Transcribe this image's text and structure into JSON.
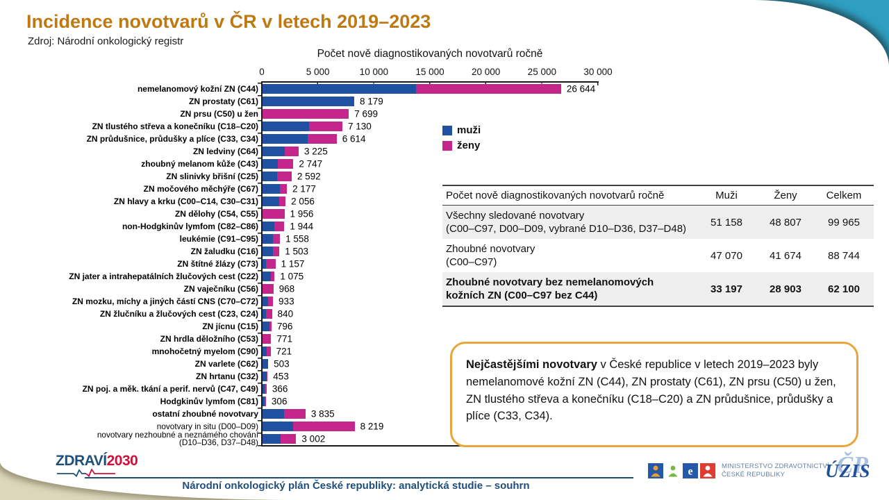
{
  "header": {
    "title": "Incidence novotvarů v ČR v letech 2019–2023",
    "subtitle": "Zdroj: Národní onkologický registr"
  },
  "colors": {
    "muzi_blue": "#2050A0",
    "zeny_pink": "#C4268C",
    "title_orange": "#BF7913",
    "infobox_border": "#E9A43C",
    "footer_blue": "#1F4E79",
    "logo_red": "#D0103A",
    "corner_teal": "#2E9FC1",
    "corner_beige": "#E7E2CC",
    "table_shade": "#EFEFEF"
  },
  "chart_data": {
    "type": "bar",
    "orientation": "horizontal-stacked",
    "title": "Počet nově diagnostikovaných novotvarů ročně",
    "x_axis": {
      "min": 0,
      "max": 30000,
      "tick_step": 5000,
      "tick_labels": [
        "0",
        "5 000",
        "10 000",
        "15 000",
        "20 000",
        "25 000",
        "30 000"
      ]
    },
    "legend": [
      {
        "label": "muži",
        "color": "#2050A0"
      },
      {
        "label": "ženy",
        "color": "#C4268C"
      }
    ],
    "series_names": [
      "muži",
      "ženy"
    ],
    "rows": [
      {
        "label": "nemelanomový kožní ZN (C44)",
        "bold": true,
        "muzi": 13700,
        "zeny": 12944,
        "total": 26644,
        "total_label": "26 644"
      },
      {
        "label": "ZN prostaty (C61)",
        "bold": true,
        "muzi": 8179,
        "zeny": 0,
        "total": 8179,
        "total_label": "8 179"
      },
      {
        "label": "ZN prsu (C50) u žen",
        "bold": true,
        "muzi": 0,
        "zeny": 7699,
        "total": 7699,
        "total_label": "7 699"
      },
      {
        "label": "ZN tlustého střeva a konečníku (C18–C20)",
        "bold": true,
        "muzi": 4150,
        "zeny": 2980,
        "total": 7130,
        "total_label": "7 130"
      },
      {
        "label": "ZN průdušnice, průdušky a plíce (C33, C34)",
        "bold": true,
        "muzi": 4000,
        "zeny": 2614,
        "total": 6614,
        "total_label": "6 614"
      },
      {
        "label": "ZN ledviny (C64)",
        "bold": true,
        "muzi": 2000,
        "zeny": 1225,
        "total": 3225,
        "total_label": "3 225"
      },
      {
        "label": "zhoubný melanom kůže (C43)",
        "bold": true,
        "muzi": 1380,
        "zeny": 1367,
        "total": 2747,
        "total_label": "2 747"
      },
      {
        "label": "ZN slinivky břišní (C25)",
        "bold": true,
        "muzi": 1290,
        "zeny": 1302,
        "total": 2592,
        "total_label": "2 592"
      },
      {
        "label": "ZN močového měchýře (C67)",
        "bold": true,
        "muzi": 1570,
        "zeny": 607,
        "total": 2177,
        "total_label": "2 177"
      },
      {
        "label": "ZN hlavy a krku (C00–C14, C30–C31)",
        "bold": true,
        "muzi": 1500,
        "zeny": 556,
        "total": 2056,
        "total_label": "2 056"
      },
      {
        "label": "ZN dělohy (C54, C55)",
        "bold": true,
        "muzi": 0,
        "zeny": 1956,
        "total": 1956,
        "total_label": "1 956"
      },
      {
        "label": "non-Hodgkinův lymfom (C82–C86)",
        "bold": true,
        "muzi": 1030,
        "zeny": 914,
        "total": 1944,
        "total_label": "1 944"
      },
      {
        "label": "leukémie (C91–C95)",
        "bold": true,
        "muzi": 900,
        "zeny": 658,
        "total": 1558,
        "total_label": "1 558"
      },
      {
        "label": "ZN žaludku (C16)",
        "bold": true,
        "muzi": 900,
        "zeny": 603,
        "total": 1503,
        "total_label": "1 503"
      },
      {
        "label": "ZN štítné žlázy (C73)",
        "bold": true,
        "muzi": 290,
        "zeny": 867,
        "total": 1157,
        "total_label": "1 157"
      },
      {
        "label": "ZN jater a intrahepatálních žlučových cest (C22)",
        "bold": true,
        "muzi": 740,
        "zeny": 335,
        "total": 1075,
        "total_label": "1 075"
      },
      {
        "label": "ZN vaječníku (C56)",
        "bold": true,
        "muzi": 0,
        "zeny": 968,
        "total": 968,
        "total_label": "968"
      },
      {
        "label": "ZN mozku, míchy a jiných částí CNS (C70–C72)",
        "bold": true,
        "muzi": 520,
        "zeny": 413,
        "total": 933,
        "total_label": "933"
      },
      {
        "label": "ZN žlučníku a žlučových cest (C23, C24)",
        "bold": true,
        "muzi": 330,
        "zeny": 510,
        "total": 840,
        "total_label": "840"
      },
      {
        "label": "ZN jícnu (C15)",
        "bold": true,
        "muzi": 630,
        "zeny": 166,
        "total": 796,
        "total_label": "796"
      },
      {
        "label": "ZN hrdla děložního (C53)",
        "bold": true,
        "muzi": 0,
        "zeny": 771,
        "total": 771,
        "total_label": "771"
      },
      {
        "label": "mnohočetný myelom (C90)",
        "bold": true,
        "muzi": 390,
        "zeny": 331,
        "total": 721,
        "total_label": "721"
      },
      {
        "label": "ZN varlete (C62)",
        "bold": true,
        "muzi": 503,
        "zeny": 0,
        "total": 503,
        "total_label": "503"
      },
      {
        "label": "ZN hrtanu (C32)",
        "bold": true,
        "muzi": 395,
        "zeny": 58,
        "total": 453,
        "total_label": "453"
      },
      {
        "label": "ZN poj. a měk. tkání a perif. nervů (C47, C49)",
        "bold": true,
        "muzi": 200,
        "zeny": 166,
        "total": 366,
        "total_label": "366"
      },
      {
        "label": "Hodgkinův lymfom (C81)",
        "bold": true,
        "muzi": 165,
        "zeny": 141,
        "total": 306,
        "total_label": "306"
      },
      {
        "label": "ostatní zhoubné novotvary",
        "bold": true,
        "muzi": 1900,
        "zeny": 1935,
        "total": 3835,
        "total_label": "3 835"
      },
      {
        "label": "novotvary in situ (D00–D09)",
        "bold": false,
        "muzi": 2700,
        "zeny": 5519,
        "total": 8219,
        "total_label": "8 219"
      },
      {
        "label": "novotvary nezhoubné a neznámého chování",
        "label2": "(D10–D36, D37–D48)",
        "bold": false,
        "muzi": 1600,
        "zeny": 1402,
        "total": 3002,
        "total_label": "3 002"
      }
    ]
  },
  "table": {
    "columns": [
      "Počet nově diagnostikovaných novotvarů ročně",
      "Muži",
      "Ženy",
      "Celkem"
    ],
    "rows": [
      {
        "line1": "Všechny sledované novotvary",
        "line2": "(C00–C97, D00–D09, vybrané D10–D36, D37–D48)",
        "muzi": "51 158",
        "zeny": "48 807",
        "celkem": "99 965",
        "bold": false,
        "shaded": true
      },
      {
        "line1": "Zhoubné novotvary",
        "line2": "(C00–C97)",
        "muzi": "47 070",
        "zeny": "41 674",
        "celkem": "88 744",
        "bold": false,
        "shaded": false
      },
      {
        "line1": "Zhoubné novotvary bez nemelanomových",
        "line2": "kožních ZN (C00–C97 bez C44)",
        "muzi": "33 197",
        "zeny": "28 903",
        "celkem": "62 100",
        "bold": true,
        "shaded": true
      }
    ]
  },
  "infobox": {
    "bold_text": "Nejčastějšími novotvary",
    "text": " v České republice v letech 2019–2023 byly nemelanomové kožní ZN (C44), ZN prostaty (C61), ZN prsu (C50) u žen, ZN tlustého střeva a konečníku (C18–C20) a ZN průdušnice, průdušky a plíce (C33, C34)."
  },
  "footer": {
    "zdravi_logo": {
      "part1": "ZDRAVÍ",
      "part2": "2030"
    },
    "title": "Národní onkologický plán České republiky: analytická studie – souhrn",
    "ministry_line1": "MINISTERSTVO ZDRAVOTNICTVÍ",
    "ministry_line2": "ČESKÉ REPUBLIKY",
    "ministry_tiles": [
      {
        "name": "ministry-tile-person-orange-icon",
        "bg": "#2458A8",
        "fg": "#F0A02E",
        "glyph": "person"
      },
      {
        "name": "ministry-tile-person-green-icon",
        "bg": "#FFFFFF",
        "fg": "#76B843",
        "glyph": "person"
      },
      {
        "name": "ministry-tile-letter-icon",
        "bg": "#2458A8",
        "fg": "#FFFFFF",
        "glyph": "letter",
        "char": "e"
      },
      {
        "name": "ministry-tile-person-red-icon",
        "bg": "#E03C31",
        "fg": "#FFFFFF",
        "glyph": "person"
      }
    ],
    "uzis": {
      "front": "ÚZIS",
      "back": "ČR"
    }
  }
}
